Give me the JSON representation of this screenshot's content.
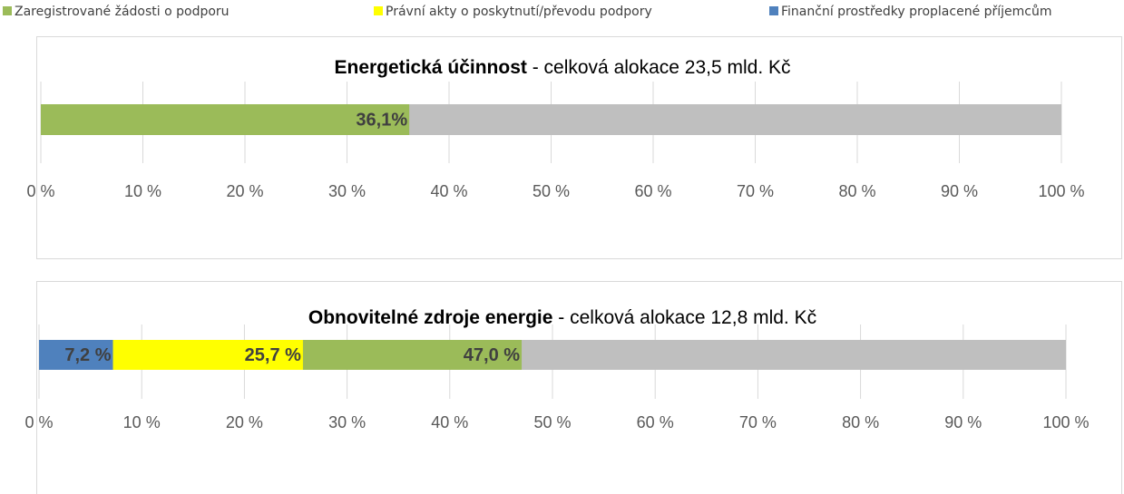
{
  "legend": [
    {
      "name": "Zaregistrované žádosti o podporu",
      "color": "#9bbb59"
    },
    {
      "name": "Právní akty o poskytnutí/převodu podpory",
      "color": "#ffff00"
    },
    {
      "name": "Finanční prostředky proplacené příjemcům",
      "color": "#4f81bd"
    }
  ],
  "chart_data": [
    {
      "type": "bar",
      "orientation": "horizontal",
      "title_bold": "Energetická účinnost",
      "title_rest": " - celková alokace 23,5 mld. Kč",
      "track_color": "#bfbfbf",
      "xlim": [
        0,
        100
      ],
      "xticks": [
        {
          "value": 0,
          "label": "0 %"
        },
        {
          "value": 10,
          "label": "10 %"
        },
        {
          "value": 20,
          "label": "20 %"
        },
        {
          "value": 30,
          "label": "30 %"
        },
        {
          "value": 40,
          "label": "40 %"
        },
        {
          "value": 50,
          "label": "50 %"
        },
        {
          "value": 60,
          "label": "60 %"
        },
        {
          "value": 70,
          "label": "70 %"
        },
        {
          "value": 80,
          "label": "80 %"
        },
        {
          "value": 90,
          "label": "90 %"
        },
        {
          "value": 100,
          "label": "100 %"
        }
      ],
      "grid": true,
      "series": [
        {
          "color": "#9bbb59",
          "values": [
            36.1
          ],
          "value_labels": [
            "36,1%"
          ]
        }
      ]
    },
    {
      "type": "bar",
      "orientation": "horizontal",
      "title_bold": "Obnovitelné zdroje energie",
      "title_rest": " - celková alokace 12,8 mld. Kč",
      "track_color": "#bfbfbf",
      "xlim": [
        0,
        100
      ],
      "xticks": [
        {
          "value": 0,
          "label": "0 %"
        },
        {
          "value": 10,
          "label": "10 %"
        },
        {
          "value": 20,
          "label": "20 %"
        },
        {
          "value": 30,
          "label": "30 %"
        },
        {
          "value": 40,
          "label": "40 %"
        },
        {
          "value": 50,
          "label": "50 %"
        },
        {
          "value": 60,
          "label": "60 %"
        },
        {
          "value": 70,
          "label": "70 %"
        },
        {
          "value": 80,
          "label": "80 %"
        },
        {
          "value": 90,
          "label": "90 %"
        },
        {
          "value": 100,
          "label": "100 %"
        }
      ],
      "grid": true,
      "series": [
        {
          "color": "#9bbb59",
          "values": [
            47.0
          ],
          "value_labels": [
            "47,0 %"
          ]
        },
        {
          "color": "#ffff00",
          "values": [
            25.7
          ],
          "value_labels": [
            "25,7 %"
          ]
        },
        {
          "color": "#4f81bd",
          "values": [
            7.2
          ],
          "value_labels": [
            "7,2 %"
          ]
        }
      ]
    }
  ]
}
